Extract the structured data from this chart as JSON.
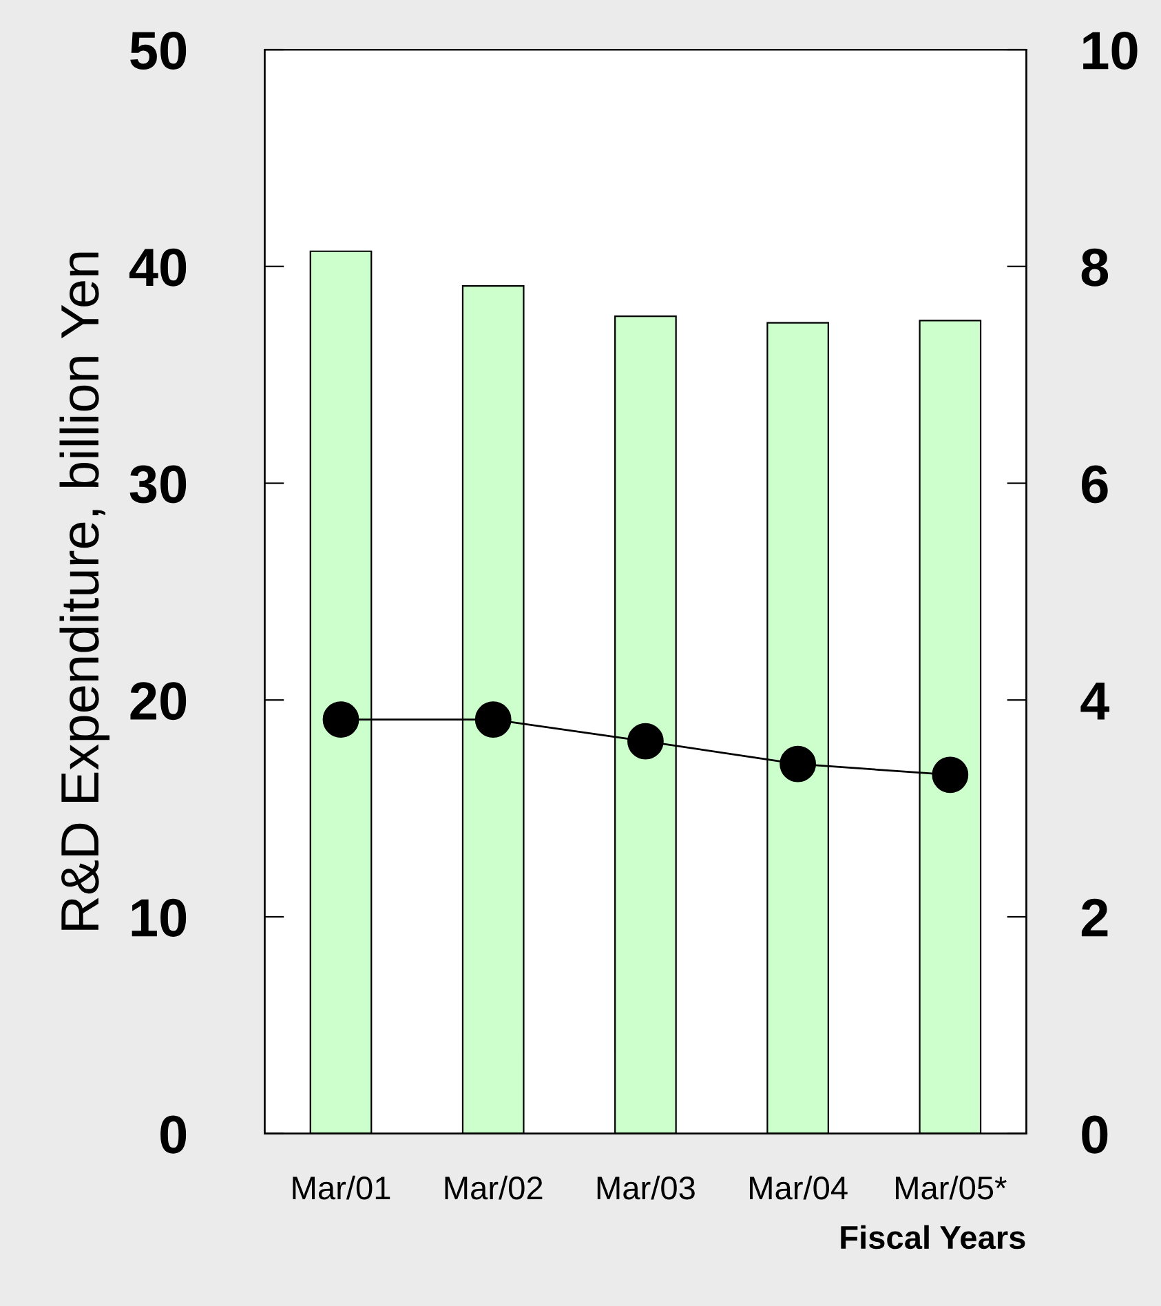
{
  "chart_data": {
    "type": "bar",
    "ylabel": "R&D Expenditure, billion Yen",
    "xlabel": "Fiscal Years",
    "categories": [
      "Mar/01",
      "Mar/02",
      "Mar/03",
      "Mar/04",
      "Mar/05*"
    ],
    "series": [
      {
        "color": "#ccffcc",
        "values": [
          40.7,
          39.1,
          37.7,
          37.4,
          37.5
        ]
      },
      {
        "type": "line",
        "axis": "y2",
        "color": "#000000",
        "marker": "circle",
        "line_style": "solid",
        "values": [
          3.82,
          3.82,
          3.62,
          3.41,
          3.31
        ]
      }
    ],
    "ylim": [
      0,
      50
    ],
    "yticks": [
      0,
      10,
      20,
      30,
      40,
      50
    ],
    "y2lim": [
      0,
      10
    ],
    "y2ticks": [
      0,
      2,
      4,
      6,
      8,
      10
    ],
    "grid": false,
    "legend": false
  }
}
